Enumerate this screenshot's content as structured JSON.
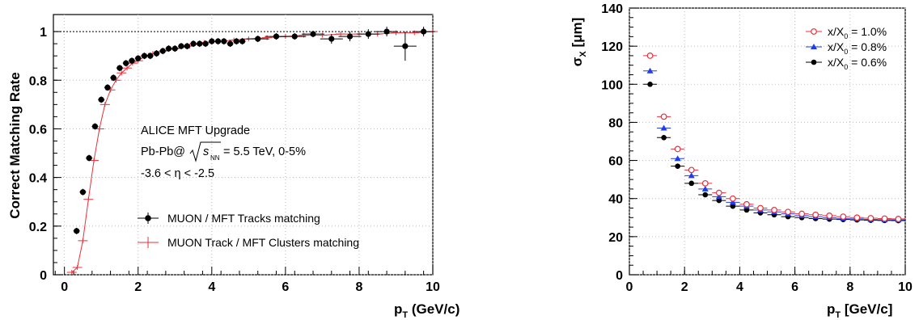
{
  "chart_data": [
    {
      "type": "scatter",
      "ylabel": "Correct Matching Rate",
      "xlabel": "p_T (GeV/c)",
      "xlim": [
        -0.3,
        10
      ],
      "ylim": [
        0,
        1.07
      ],
      "xticks": [
        "0",
        "2",
        "4",
        "6",
        "8",
        "10"
      ],
      "yticks": [
        "0",
        "0.2",
        "0.4",
        "0.6",
        "0.8",
        "1"
      ],
      "grid": true,
      "reference_line_y": 1.0,
      "annotations": [
        "ALICE MFT Upgrade",
        "Pb-Pb@",
        "= 5.5 TeV, 0-5%",
        "-3.6 < η < -2.5"
      ],
      "sqrt_s_label": "s",
      "sqrt_s_sub": "NN",
      "legend_placement": "bottom-center",
      "series": [
        {
          "name": "MUON / MFT Tracks matching",
          "color": "#000000",
          "marker": "filled-circle",
          "x": [
            0.33,
            0.5,
            0.67,
            0.83,
            1.0,
            1.17,
            1.33,
            1.5,
            1.67,
            1.83,
            2.0,
            2.17,
            2.33,
            2.5,
            2.67,
            2.83,
            3.0,
            3.17,
            3.33,
            3.5,
            3.67,
            3.83,
            4.0,
            4.17,
            4.33,
            4.5,
            4.67,
            4.83,
            5.25,
            5.75,
            6.25,
            6.75,
            7.25,
            7.75,
            8.25,
            8.75,
            9.25,
            9.75
          ],
          "y": [
            0.18,
            0.34,
            0.48,
            0.61,
            0.72,
            0.77,
            0.81,
            0.85,
            0.87,
            0.88,
            0.89,
            0.9,
            0.9,
            0.91,
            0.92,
            0.93,
            0.93,
            0.94,
            0.94,
            0.95,
            0.95,
            0.95,
            0.96,
            0.96,
            0.96,
            0.95,
            0.96,
            0.96,
            0.97,
            0.98,
            0.98,
            0.99,
            0.97,
            0.98,
            0.99,
            1.0,
            0.94,
            1.0
          ]
        },
        {
          "name": "MUON Track / MFT Clusters matching",
          "color": "#e8303a",
          "marker": "cross",
          "x": [
            0.2,
            0.35,
            0.5,
            0.65,
            0.8,
            0.95,
            1.1,
            1.25,
            1.4,
            1.55,
            1.7,
            1.85,
            2.0,
            2.2,
            2.4,
            2.7,
            3.0,
            3.4,
            3.8,
            4.2,
            4.6,
            5.0,
            5.5,
            6.0,
            6.5,
            7.0,
            7.5,
            8.0,
            8.5,
            9.0,
            9.5,
            10.0
          ],
          "y": [
            0.01,
            0.03,
            0.14,
            0.31,
            0.47,
            0.6,
            0.7,
            0.76,
            0.8,
            0.83,
            0.85,
            0.87,
            0.88,
            0.9,
            0.91,
            0.92,
            0.93,
            0.94,
            0.955,
            0.96,
            0.965,
            0.97,
            0.975,
            0.98,
            0.985,
            0.985,
            0.99,
            0.99,
            0.99,
            0.995,
            0.995,
            1.0
          ]
        }
      ]
    },
    {
      "type": "scatter",
      "ylabel": "σ_X [μm]",
      "xlabel": "p_T [GeV/c]",
      "xlim": [
        0,
        10
      ],
      "ylim": [
        0,
        140
      ],
      "xticks": [
        "0",
        "2",
        "4",
        "6",
        "8",
        "10"
      ],
      "yticks": [
        "0",
        "20",
        "40",
        "60",
        "80",
        "100",
        "120",
        "140"
      ],
      "grid": true,
      "legend_placement": "top-right",
      "series": [
        {
          "name": "x/X_0 = 1.0%",
          "legend_main": "x/X",
          "legend_sub": "0",
          "legend_tail": " = 1.0%",
          "color": "#e8303a",
          "marker": "open-circle",
          "x": [
            0.75,
            1.25,
            1.75,
            2.25,
            2.75,
            3.25,
            3.75,
            4.25,
            4.75,
            5.25,
            5.75,
            6.25,
            6.75,
            7.25,
            7.75,
            8.25,
            8.75,
            9.25,
            9.75
          ],
          "y": [
            115,
            83,
            66,
            55,
            48,
            43,
            40,
            37,
            35,
            34,
            33,
            32,
            31.5,
            31,
            30.5,
            30,
            29.7,
            29.5,
            29.3
          ]
        },
        {
          "name": "x/X_0 = 0.8%",
          "legend_main": "x/X",
          "legend_sub": "0",
          "legend_tail": " = 0.8%",
          "color": "#1f3df0",
          "marker": "filled-triangle",
          "x": [
            0.75,
            1.25,
            1.75,
            2.25,
            2.75,
            3.25,
            3.75,
            4.25,
            4.75,
            5.25,
            5.75,
            6.25,
            6.75,
            7.25,
            7.75,
            8.25,
            8.75,
            9.25,
            9.75
          ],
          "y": [
            107,
            77,
            61,
            52,
            45,
            41,
            38,
            36,
            34,
            33,
            32,
            31,
            30.5,
            30,
            29.6,
            29.3,
            29,
            28.9,
            28.8
          ]
        },
        {
          "name": "x/X_0 = 0.6%",
          "legend_main": "x/X",
          "legend_sub": "0",
          "legend_tail": " = 0.6%",
          "color": "#000000",
          "marker": "filled-circle",
          "x": [
            0.75,
            1.25,
            1.75,
            2.25,
            2.75,
            3.25,
            3.75,
            4.25,
            4.75,
            5.25,
            5.75,
            6.25,
            6.75,
            7.25,
            7.75,
            8.25,
            8.75,
            9.25,
            9.75
          ],
          "y": [
            100,
            72,
            57,
            48,
            42,
            39,
            36,
            34,
            32.5,
            31.5,
            30.5,
            30,
            29.5,
            29.2,
            29,
            28.8,
            28.6,
            28.5,
            28.4
          ]
        }
      ]
    }
  ]
}
